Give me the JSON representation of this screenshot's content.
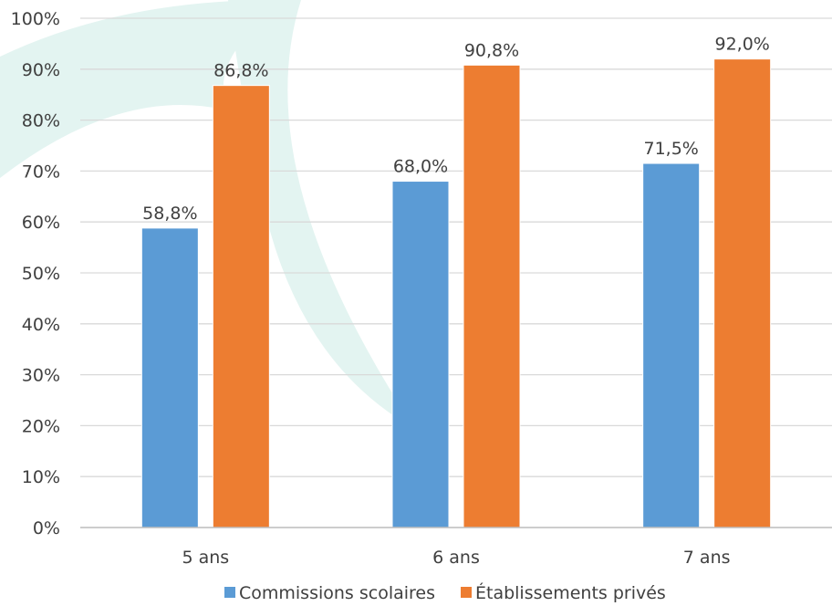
{
  "chart_data": {
    "type": "bar",
    "categories": [
      "5 ans",
      "6 ans",
      "7 ans"
    ],
    "series": [
      {
        "name": "Commissions scolaires",
        "values": [
          58.8,
          68.0,
          71.5
        ],
        "labels": [
          "58,8%",
          "68,0%",
          "71,5%"
        ],
        "color": "#5b9bd5"
      },
      {
        "name": "Établissements privés",
        "values": [
          86.8,
          90.8,
          92.0
        ],
        "labels": [
          "86,8%",
          "90,8%",
          "92,0%"
        ],
        "color": "#ed7d31"
      }
    ],
    "y_ticks": [
      "0%",
      "10%",
      "20%",
      "30%",
      "40%",
      "50%",
      "60%",
      "70%",
      "80%",
      "90%",
      "100%"
    ],
    "ylim": [
      0,
      100
    ],
    "grid": true,
    "legend_position": "bottom",
    "title": "",
    "xlabel": "",
    "ylabel": "",
    "colors": {
      "gridline": "#d9d9d9",
      "text": "#404040",
      "watermark": "#e3f4f1"
    }
  }
}
